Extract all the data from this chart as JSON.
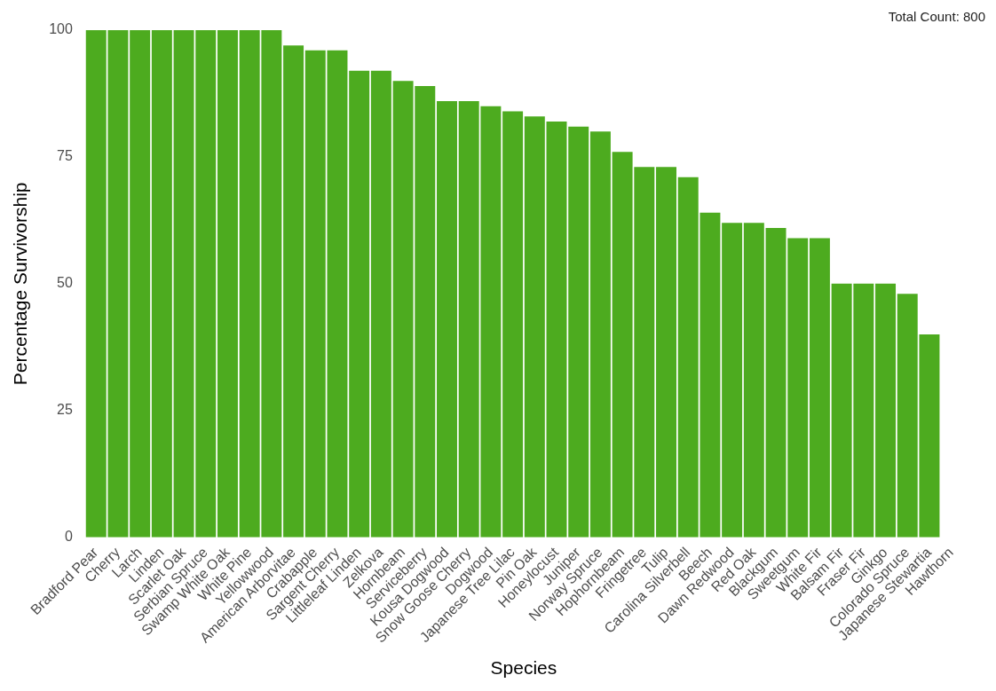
{
  "chart_data": {
    "type": "bar",
    "xlabel": "Species",
    "ylabel": "Percentage Survivorship",
    "annotations": [
      "Total Count: 800"
    ],
    "categories": [
      "Bradford Pear",
      "Cherry",
      "Larch",
      "Linden",
      "Scarlet Oak",
      "Serbian Spruce",
      "Swamp White Oak",
      "White Pine",
      "Yellowwood",
      "American Arborvitae",
      "Crabapple",
      "Sargent Cherry",
      "Littleleaf Linden",
      "Zelkova",
      "Hornbeam",
      "Serviceberry",
      "Kousa Dogwood",
      "Snow Goose Cherry",
      "Dogwood",
      "Japanese Tree Lilac",
      "Pin Oak",
      "Honeylocust",
      "Juniper",
      "Norway Spruce",
      "Hophornbeam",
      "Fringetree",
      "Tulip",
      "Carolina Silverbell",
      "Beech",
      "Dawn Redwood",
      "Red Oak",
      "Blackgum",
      "Sweetgum",
      "White Fir",
      "Balsam Fir",
      "Fraser Fir",
      "Ginkgo",
      "Colorado Spruce",
      "Japanese Stewartia",
      "Hawthorn"
    ],
    "values": [
      100,
      100,
      100,
      100,
      100,
      100,
      100,
      100,
      100,
      97,
      96,
      96,
      92,
      92,
      90,
      89,
      86,
      86,
      85,
      84,
      83,
      82,
      81,
      80,
      76,
      73,
      73,
      71,
      64,
      62,
      62,
      61,
      59,
      59,
      50,
      50,
      50,
      48,
      40,
      0
    ],
    "color": "#4dab1f",
    "ylim": [
      0,
      100
    ],
    "yticks": [
      0,
      25,
      50,
      75,
      100
    ],
    "grid": false,
    "legend": false
  }
}
